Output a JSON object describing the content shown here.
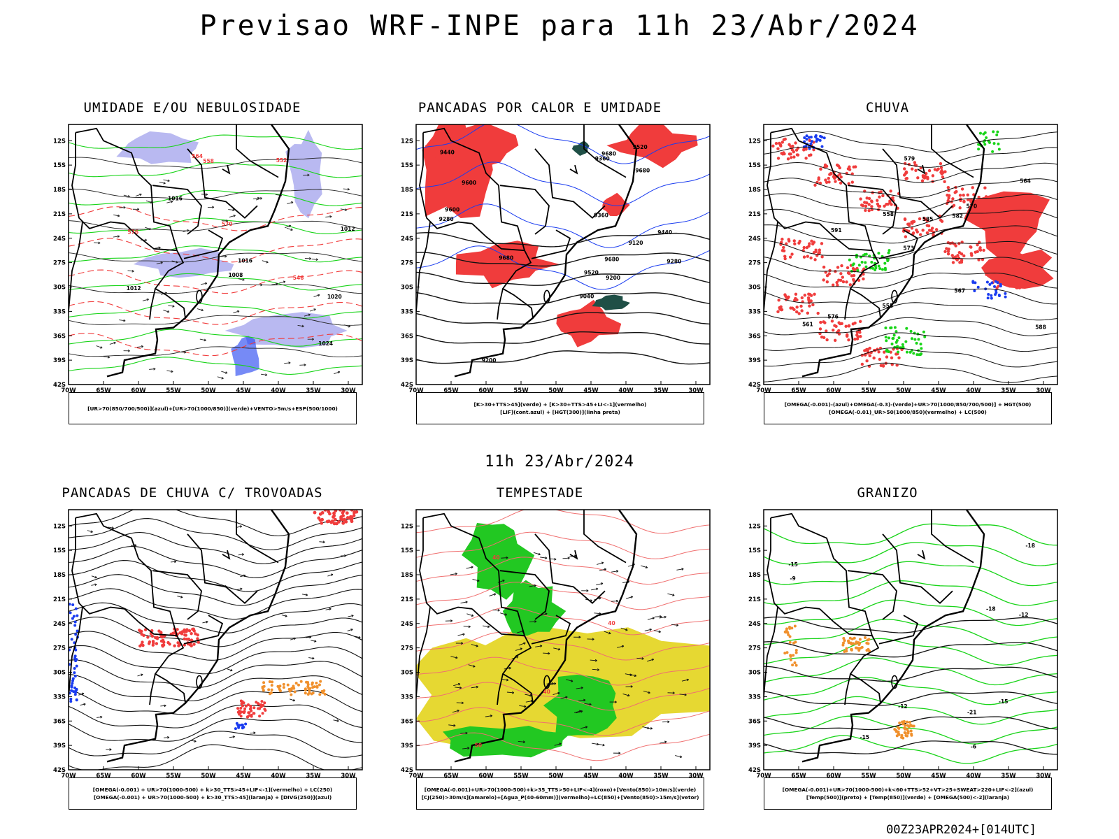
{
  "title": "Previsao WRF-INPE  para 11h 23/Abr/2024",
  "subtitle": "11h 23/Abr/2024",
  "footer": "00Z23APR2024+[014UTC]",
  "chart_data": [
    {
      "type": "heatmap",
      "title": "UMIDADE E/OU NEBULOSIDADE",
      "lat_ticks": [
        "12S",
        "15S",
        "18S",
        "21S",
        "24S",
        "27S",
        "30S",
        "33S",
        "36S",
        "39S",
        "42S"
      ],
      "lon_ticks": [
        "70W",
        "65W",
        "60W",
        "55W",
        "50W",
        "45W",
        "40W",
        "35W",
        "30W"
      ],
      "xlim": [
        -70,
        -28
      ],
      "ylim": [
        -42,
        -10
      ],
      "contour_labels": [
        "1012",
        "1016",
        "1020",
        "1024",
        "1016",
        "1012",
        "1008",
        "570",
        "576",
        "564",
        "558",
        "552",
        "546"
      ],
      "legend": [
        "[UR>70(850/700/500)](azul)+[UR>70(1000/850)](verde)+VENTO>5m/s+ESP(500/1000)"
      ]
    },
    {
      "type": "heatmap",
      "title": "PANCADAS POR CALOR E UMIDADE",
      "lat_ticks": [
        "12S",
        "15S",
        "18S",
        "21S",
        "24S",
        "27S",
        "30S",
        "33S",
        "36S",
        "39S",
        "42S"
      ],
      "lon_ticks": [
        "70W",
        "65W",
        "60W",
        "55W",
        "50W",
        "45W",
        "40W",
        "35W",
        "30W"
      ],
      "xlim": [
        -70,
        -28
      ],
      "ylim": [
        -42,
        -10
      ],
      "contour_labels": [
        "9680",
        "9680",
        "9680",
        "9680",
        "9600",
        "9520",
        "9440",
        "9360",
        "9280",
        "9200",
        "9120",
        "9040",
        "9600",
        "9520",
        "9440",
        "9360",
        "9280",
        "9200"
      ],
      "legend": [
        "[K>30+TTS>45](verde) + [K>30+TTS>45+LI<-1](vermelho)",
        "[LIF](cont.azul) + [HGT(300)](linha preta)"
      ]
    },
    {
      "type": "heatmap",
      "title": "CHUVA",
      "lat_ticks": [
        "12S",
        "15S",
        "18S",
        "21S",
        "24S",
        "27S",
        "30S",
        "33S",
        "36S",
        "39S",
        "42S"
      ],
      "lon_ticks": [
        "70W",
        "65W",
        "60W",
        "55W",
        "50W",
        "45W",
        "40W",
        "35W",
        "30W"
      ],
      "xlim": [
        -70,
        -28
      ],
      "ylim": [
        -42,
        -10
      ],
      "contour_labels": [
        "591",
        "588",
        "585",
        "582",
        "579",
        "576",
        "573",
        "570",
        "567",
        "564",
        "561",
        "558",
        "555"
      ],
      "legend": [
        "[OMEGA(-0.001)-(azul)+OMEGA(-0.3)-(verde)+UR>70(1000/850/700/500)] + HGT(500)",
        "[OMEGA(-0.01)_UR>50(1000/850)(vermelho) + LC(500)"
      ]
    },
    {
      "type": "heatmap",
      "title": "PANCADAS DE CHUVA C/ TROVOADAS",
      "lat_ticks": [
        "12S",
        "15S",
        "18S",
        "21S",
        "24S",
        "27S",
        "30S",
        "33S",
        "36S",
        "39S",
        "42S"
      ],
      "lon_ticks": [
        "70W",
        "65W",
        "60W",
        "55W",
        "50W",
        "45W",
        "40W",
        "35W",
        "30W"
      ],
      "xlim": [
        -70,
        -28
      ],
      "ylim": [
        -42,
        -10
      ],
      "legend": [
        "[OMEGA(-0.001) + UR>70(1000-500) + k>30_TTS>45+LIF<-1](vermelho) + LC(250)",
        "[OMEGA(-0.001) + UR>70(1000-500) + k>30_TTS>45](laranja) + [DIVG(250)](azul)"
      ]
    },
    {
      "type": "heatmap",
      "title": "TEMPESTADE",
      "lat_ticks": [
        "12S",
        "15S",
        "18S",
        "21S",
        "24S",
        "27S",
        "30S",
        "33S",
        "36S",
        "39S",
        "42S"
      ],
      "lon_ticks": [
        "70W",
        "65W",
        "60W",
        "55W",
        "50W",
        "45W",
        "40W",
        "35W",
        "30W"
      ],
      "xlim": [
        -70,
        -28
      ],
      "ylim": [
        -42,
        -10
      ],
      "contour_labels": [
        "40",
        "40",
        "50",
        "40"
      ],
      "legend": [
        "[OMEGA(-0.001)+UR>70(1000-500)+k>35_TTS>50+LIF<-4](roxo)+[Vento(850)>10m/s](verde)",
        "[CJ(250)>30m/s](amarelo)+[Agua_P(40-60mm)](vermelho)+LC(850)+[Vento(850)>15m/s](vetor)"
      ]
    },
    {
      "type": "heatmap",
      "title": "GRANIZO",
      "lat_ticks": [
        "12S",
        "15S",
        "18S",
        "21S",
        "24S",
        "27S",
        "30S",
        "33S",
        "36S",
        "39S",
        "42S"
      ],
      "lon_ticks": [
        "70W",
        "65W",
        "60W",
        "55W",
        "50W",
        "45W",
        "40W",
        "35W",
        "30W"
      ],
      "xlim": [
        -70,
        -28
      ],
      "ylim": [
        -42,
        -10
      ],
      "contour_labels": [
        "-6",
        "-9",
        "-12",
        "-15",
        "-18",
        "-12",
        "-15",
        "-15",
        "-18",
        "-21"
      ],
      "legend": [
        "[OMEGA(-0.001)+UR>70(1000-500)+k<60+TTS>52+VT>25+SWEAT>220+LIF<-2](azul)",
        "[Temp(500)](preto) + [Temp(850)](verde) + [OMEGA(500)<-2](laranja)"
      ]
    }
  ],
  "colors": {
    "red": "#f03c3c",
    "green": "#18d418",
    "blue": "#1a3cf0",
    "lavender": "#a8a8ee",
    "yellow": "#e6d832",
    "orange": "#f0902c",
    "darkgreen": "#1f4f46",
    "salmon": "#f07070"
  }
}
